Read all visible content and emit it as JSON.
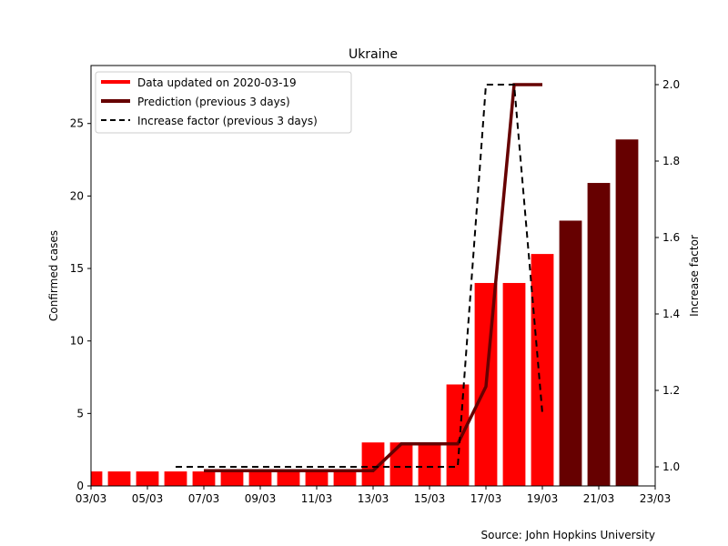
{
  "chart_data": {
    "type": "bar",
    "title": "Ukraine",
    "source": "Source: John Hopkins University",
    "xlabel": "",
    "ylabel": "Confirmed cases",
    "y2label": "Increase factor",
    "xlim": [
      "2020-03-03",
      "2020-03-23"
    ],
    "ylim": [
      0,
      29
    ],
    "y2lim": [
      0.95,
      2.05
    ],
    "x_tick_labels": [
      "03/03",
      "05/03",
      "07/03",
      "09/03",
      "11/03",
      "13/03",
      "15/03",
      "17/03",
      "19/03",
      "21/03",
      "23/03"
    ],
    "y_ticks": [
      0,
      5,
      10,
      15,
      20,
      25
    ],
    "y2_ticks": [
      1.0,
      1.2,
      1.4,
      1.6,
      1.8,
      2.0
    ],
    "legend_position": "top-left",
    "colors": {
      "data": "#ff0000",
      "prediction": "#660000",
      "factor": "#000000"
    },
    "series": [
      {
        "name": "Data updated on 2020-03-19",
        "kind": "bar",
        "x": [
          "2020-03-03",
          "2020-03-04",
          "2020-03-05",
          "2020-03-06",
          "2020-03-07",
          "2020-03-08",
          "2020-03-09",
          "2020-03-10",
          "2020-03-11",
          "2020-03-12",
          "2020-03-13",
          "2020-03-14",
          "2020-03-15",
          "2020-03-16",
          "2020-03-17",
          "2020-03-18",
          "2020-03-19"
        ],
        "values": [
          1,
          1,
          1,
          1,
          1,
          1,
          1,
          1,
          1,
          1,
          3,
          3,
          3,
          7,
          14,
          14,
          16
        ]
      },
      {
        "name": "Prediction (previous 3 days)",
        "kind": "bar",
        "x": [
          "2020-03-20",
          "2020-03-21",
          "2020-03-22"
        ],
        "values": [
          18.3,
          20.9,
          23.9
        ]
      },
      {
        "name": "Prediction (previous 3 days)",
        "kind": "line",
        "axis": "right",
        "x": [
          "2020-03-07",
          "2020-03-08",
          "2020-03-09",
          "2020-03-10",
          "2020-03-11",
          "2020-03-12",
          "2020-03-13",
          "2020-03-14",
          "2020-03-15",
          "2020-03-16",
          "2020-03-17",
          "2020-03-18",
          "2020-03-19"
        ],
        "values": [
          0.99,
          0.99,
          0.99,
          0.99,
          0.99,
          0.99,
          0.99,
          1.06,
          1.06,
          1.06,
          1.21,
          2.0,
          2.0
        ]
      },
      {
        "name": "Increase factor (previous 3 days)",
        "kind": "line",
        "style": "dashed",
        "axis": "right",
        "x": [
          "2020-03-06",
          "2020-03-07",
          "2020-03-08",
          "2020-03-09",
          "2020-03-10",
          "2020-03-11",
          "2020-03-12",
          "2020-03-13",
          "2020-03-14",
          "2020-03-15",
          "2020-03-16",
          "2020-03-17",
          "2020-03-18",
          "2020-03-19"
        ],
        "values": [
          1.0,
          1.0,
          1.0,
          1.0,
          1.0,
          1.0,
          1.0,
          1.0,
          1.0,
          1.0,
          1.0,
          2.0,
          2.0,
          1.14
        ]
      }
    ]
  }
}
